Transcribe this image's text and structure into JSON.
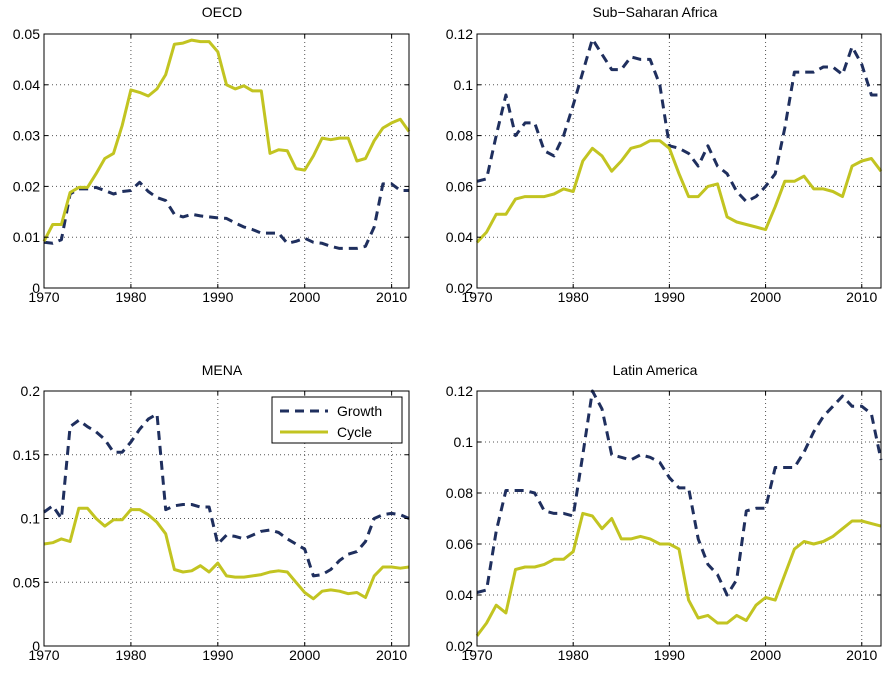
{
  "colors": {
    "growth": "#1f2f5e",
    "cycle": "#c2c421",
    "grid": "#555555",
    "axis": "#000000"
  },
  "chart_data": [
    {
      "type": "line",
      "title": "OECD",
      "xlim": [
        1970,
        2012
      ],
      "ylim": [
        0,
        0.05
      ],
      "xticks": [
        1970,
        1980,
        1990,
        2000,
        2010
      ],
      "yticks": [
        0,
        0.01,
        0.02,
        0.03,
        0.04,
        0.05
      ],
      "ytick_labels": [
        "0",
        "0.01",
        "0.02",
        "0.03",
        "0.04",
        "0.05"
      ],
      "grid": true,
      "x": [
        1970,
        1971,
        1972,
        1973,
        1974,
        1975,
        1976,
        1977,
        1978,
        1979,
        1980,
        1981,
        1982,
        1983,
        1984,
        1985,
        1986,
        1987,
        1988,
        1989,
        1990,
        1991,
        1992,
        1993,
        1994,
        1995,
        1996,
        1997,
        1998,
        1999,
        2000,
        2001,
        2002,
        2003,
        2004,
        2005,
        2006,
        2007,
        2008,
        2009,
        2010,
        2011,
        2012
      ],
      "series": [
        {
          "name": "Growth",
          "values": [
            0.009,
            0.0088,
            0.0095,
            0.0185,
            0.0195,
            0.0195,
            0.0198,
            0.0192,
            0.0185,
            0.019,
            0.0192,
            0.0208,
            0.019,
            0.0178,
            0.0172,
            0.0145,
            0.014,
            0.0145,
            0.0142,
            0.014,
            0.0138,
            0.0137,
            0.0128,
            0.012,
            0.0115,
            0.0108,
            0.0108,
            0.0108,
            0.0088,
            0.0092,
            0.0098,
            0.009,
            0.0088,
            0.0082,
            0.0078,
            0.0078,
            0.0078,
            0.0082,
            0.012,
            0.0205,
            0.0205,
            0.0192,
            0.0192
          ]
        },
        {
          "name": "Cycle",
          "values": [
            0.0092,
            0.0125,
            0.0125,
            0.0188,
            0.0198,
            0.0198,
            0.0225,
            0.0255,
            0.0265,
            0.032,
            0.039,
            0.0385,
            0.0378,
            0.0392,
            0.042,
            0.048,
            0.0482,
            0.0488,
            0.0485,
            0.0485,
            0.0465,
            0.04,
            0.0392,
            0.0398,
            0.0388,
            0.0388,
            0.0265,
            0.0272,
            0.027,
            0.0235,
            0.0232,
            0.026,
            0.0295,
            0.0292,
            0.0295,
            0.0295,
            0.025,
            0.0255,
            0.029,
            0.0315,
            0.0325,
            0.0332,
            0.0308
          ]
        }
      ]
    },
    {
      "type": "line",
      "title": "Sub−Saharan Africa",
      "xlim": [
        1970,
        2012
      ],
      "ylim": [
        0.02,
        0.12
      ],
      "xticks": [
        1970,
        1980,
        1990,
        2000,
        2010
      ],
      "yticks": [
        0.02,
        0.04,
        0.06,
        0.08,
        0.1,
        0.12
      ],
      "ytick_labels": [
        "0.02",
        "0.04",
        "0.06",
        "0.08",
        "0.1",
        "0.12"
      ],
      "grid": true,
      "x": [
        1970,
        1971,
        1972,
        1973,
        1974,
        1975,
        1976,
        1977,
        1978,
        1979,
        1980,
        1981,
        1982,
        1983,
        1984,
        1985,
        1986,
        1987,
        1988,
        1989,
        1990,
        1991,
        1992,
        1993,
        1994,
        1995,
        1996,
        1997,
        1998,
        1999,
        2000,
        2001,
        2002,
        2003,
        2004,
        2005,
        2006,
        2007,
        2008,
        2009,
        2010,
        2011,
        2012
      ],
      "series": [
        {
          "name": "Growth",
          "values": [
            0.062,
            0.063,
            0.08,
            0.096,
            0.08,
            0.085,
            0.085,
            0.074,
            0.072,
            0.08,
            0.092,
            0.105,
            0.118,
            0.112,
            0.106,
            0.106,
            0.111,
            0.11,
            0.11,
            0.1,
            0.076,
            0.075,
            0.073,
            0.068,
            0.076,
            0.068,
            0.065,
            0.058,
            0.054,
            0.056,
            0.06,
            0.065,
            0.083,
            0.105,
            0.105,
            0.105,
            0.107,
            0.107,
            0.104,
            0.115,
            0.108,
            0.096,
            0.096
          ]
        },
        {
          "name": "Cycle",
          "values": [
            0.038,
            0.042,
            0.049,
            0.049,
            0.055,
            0.056,
            0.056,
            0.056,
            0.057,
            0.059,
            0.058,
            0.07,
            0.075,
            0.072,
            0.066,
            0.07,
            0.075,
            0.076,
            0.078,
            0.078,
            0.075,
            0.065,
            0.056,
            0.056,
            0.06,
            0.061,
            0.048,
            0.046,
            0.045,
            0.044,
            0.043,
            0.052,
            0.062,
            0.062,
            0.064,
            0.059,
            0.059,
            0.058,
            0.056,
            0.068,
            0.07,
            0.071,
            0.066
          ]
        }
      ]
    },
    {
      "type": "line",
      "title": "MENA",
      "xlim": [
        1970,
        2012
      ],
      "ylim": [
        0,
        0.2
      ],
      "xticks": [
        1970,
        1980,
        1990,
        2000,
        2010
      ],
      "yticks": [
        0,
        0.05,
        0.1,
        0.15,
        0.2
      ],
      "ytick_labels": [
        "0",
        "0.05",
        "0.1",
        "0.15",
        "0.2"
      ],
      "grid": true,
      "legend": {
        "position": "top-right",
        "entries": [
          "Growth",
          "Cycle"
        ]
      },
      "x": [
        1970,
        1971,
        1972,
        1973,
        1974,
        1975,
        1976,
        1977,
        1978,
        1979,
        1980,
        1981,
        1982,
        1983,
        1984,
        1985,
        1986,
        1987,
        1988,
        1989,
        1990,
        1991,
        1992,
        1993,
        1994,
        1995,
        1996,
        1997,
        1998,
        1999,
        2000,
        2001,
        2002,
        2003,
        2004,
        2005,
        2006,
        2007,
        2008,
        2009,
        2010,
        2011,
        2012
      ],
      "series": [
        {
          "name": "Growth",
          "values": [
            0.105,
            0.11,
            0.1,
            0.172,
            0.177,
            0.172,
            0.168,
            0.162,
            0.152,
            0.152,
            0.16,
            0.17,
            0.178,
            0.182,
            0.107,
            0.11,
            0.111,
            0.111,
            0.109,
            0.109,
            0.08,
            0.087,
            0.086,
            0.084,
            0.087,
            0.09,
            0.091,
            0.089,
            0.084,
            0.08,
            0.076,
            0.055,
            0.056,
            0.06,
            0.067,
            0.072,
            0.074,
            0.082,
            0.1,
            0.103,
            0.104,
            0.103,
            0.1
          ]
        },
        {
          "name": "Cycle",
          "values": [
            0.08,
            0.081,
            0.084,
            0.082,
            0.108,
            0.108,
            0.1,
            0.094,
            0.099,
            0.099,
            0.107,
            0.107,
            0.103,
            0.097,
            0.088,
            0.06,
            0.058,
            0.059,
            0.063,
            0.058,
            0.065,
            0.055,
            0.054,
            0.054,
            0.055,
            0.056,
            0.058,
            0.059,
            0.058,
            0.05,
            0.042,
            0.037,
            0.043,
            0.044,
            0.043,
            0.041,
            0.042,
            0.038,
            0.055,
            0.062,
            0.062,
            0.061,
            0.062
          ]
        }
      ]
    },
    {
      "type": "line",
      "title": "Latin America",
      "xlim": [
        1970,
        2012
      ],
      "ylim": [
        0.02,
        0.12
      ],
      "xticks": [
        1970,
        1980,
        1990,
        2000,
        2010
      ],
      "yticks": [
        0.02,
        0.04,
        0.06,
        0.08,
        0.1,
        0.12
      ],
      "ytick_labels": [
        "0.02",
        "0.04",
        "0.06",
        "0.08",
        "0.1",
        "0.12"
      ],
      "grid": true,
      "x": [
        1970,
        1971,
        1972,
        1973,
        1974,
        1975,
        1976,
        1977,
        1978,
        1979,
        1980,
        1981,
        1982,
        1983,
        1984,
        1985,
        1986,
        1987,
        1988,
        1989,
        1990,
        1991,
        1992,
        1993,
        1994,
        1995,
        1996,
        1997,
        1998,
        1999,
        2000,
        2001,
        2002,
        2003,
        2004,
        2005,
        2006,
        2007,
        2008,
        2009,
        2010,
        2011,
        2012
      ],
      "series": [
        {
          "name": "Growth",
          "values": [
            0.041,
            0.042,
            0.065,
            0.081,
            0.081,
            0.081,
            0.08,
            0.073,
            0.072,
            0.072,
            0.071,
            0.095,
            0.12,
            0.113,
            0.095,
            0.094,
            0.093,
            0.095,
            0.094,
            0.092,
            0.086,
            0.082,
            0.082,
            0.062,
            0.052,
            0.048,
            0.04,
            0.046,
            0.073,
            0.074,
            0.074,
            0.09,
            0.09,
            0.09,
            0.096,
            0.104,
            0.11,
            0.114,
            0.118,
            0.114,
            0.114,
            0.111,
            0.093
          ]
        },
        {
          "name": "Cycle",
          "values": [
            0.024,
            0.029,
            0.036,
            0.033,
            0.05,
            0.051,
            0.051,
            0.052,
            0.054,
            0.054,
            0.057,
            0.072,
            0.071,
            0.066,
            0.07,
            0.062,
            0.062,
            0.063,
            0.062,
            0.06,
            0.06,
            0.058,
            0.038,
            0.031,
            0.032,
            0.029,
            0.029,
            0.032,
            0.03,
            0.036,
            0.039,
            0.038,
            0.048,
            0.058,
            0.061,
            0.06,
            0.061,
            0.063,
            0.066,
            0.069,
            0.069,
            0.068,
            0.067
          ]
        }
      ]
    }
  ]
}
